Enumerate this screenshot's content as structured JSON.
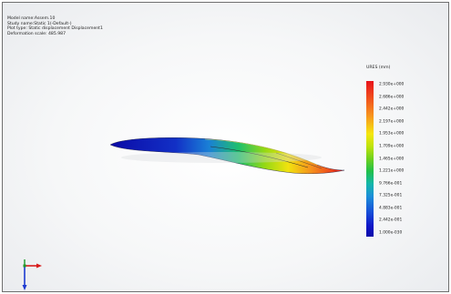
{
  "info": {
    "model_name": "Model name:Assem.10",
    "study_name": "Study name:Static 1(-Default-)",
    "plot_type": "Plot type: Static displacement Displacement1",
    "deformation_scale": "Deformation scale: 485.987"
  },
  "legend": {
    "title": "URES (mm)",
    "labels": [
      "2.930e+000",
      "2.686e+000",
      "2.442e+000",
      "2.197e+000",
      "1.953e+000",
      "1.709e+000",
      "1.465e+000",
      "1.221e+000",
      "9.766e-001",
      "7.325e-001",
      "4.883e-001",
      "2.442e-001",
      "1.000e-030"
    ]
  },
  "colors": {
    "max": "#e8131b",
    "high": "#f7931e",
    "mid": "#6fd11e",
    "low": "#1b8fd9",
    "min": "#0c0aa8"
  },
  "icons": {
    "triad": "xyz-triad-icon"
  }
}
